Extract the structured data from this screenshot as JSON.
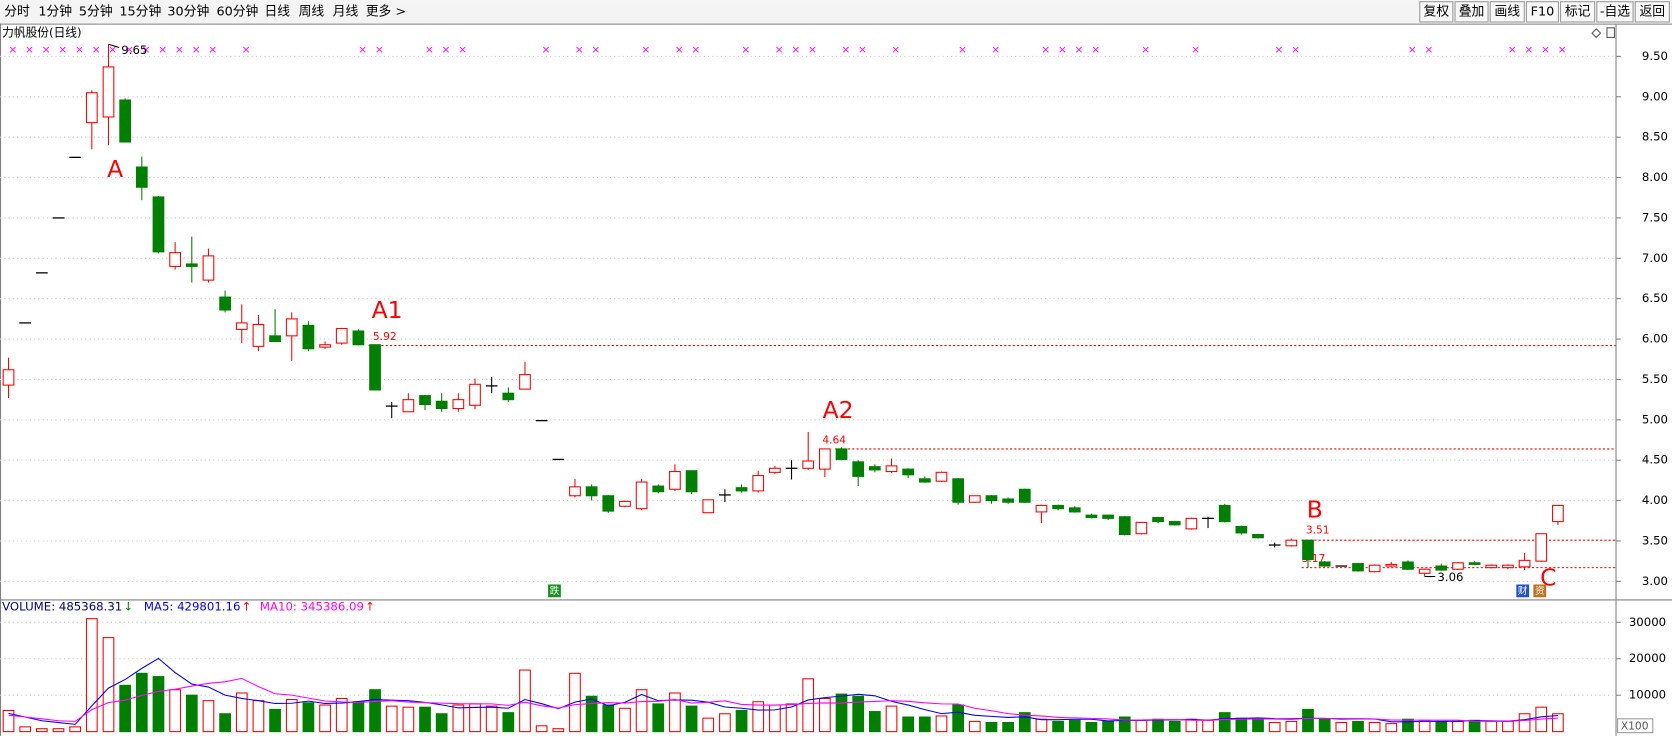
{
  "toolbar": {
    "periods": [
      "分时",
      "1分钟",
      "5分钟",
      "15分钟",
      "30分钟",
      "60分钟",
      "日线",
      "周线",
      "月线",
      "更多 >"
    ],
    "active_period": 6,
    "active_color": "#ff0000",
    "buttons": [
      "复权",
      "叠加",
      "画线",
      "F10",
      "标记",
      "-自选",
      "返回"
    ]
  },
  "chart_data": [
    {
      "type": "candlestick",
      "title": "力帆股份(日线)",
      "open": [
        5.43,
        6.2,
        6.82,
        7.5,
        8.25,
        8.68,
        8.75,
        8.96,
        8.13,
        7.76,
        6.9,
        6.93,
        6.73,
        6.52,
        6.12,
        5.91,
        6.04,
        6.04,
        6.17,
        5.9,
        5.95,
        6.1,
        5.93,
        5.17,
        5.1,
        5.3,
        5.23,
        5.14,
        5.18,
        5.42,
        5.33,
        5.38,
        4.99,
        4.51,
        4.06,
        4.17,
        4.06,
        3.93,
        3.9,
        4.18,
        4.14,
        4.37,
        3.85,
        4.07,
        4.16,
        4.12,
        4.35,
        4.4,
        4.4,
        4.39,
        4.64,
        4.48,
        4.42,
        4.36,
        4.39,
        4.27,
        4.24,
        4.27,
        3.98,
        4.06,
        4.02,
        4.14,
        3.86,
        3.94,
        3.91,
        3.82,
        3.82,
        3.8,
        3.59,
        3.79,
        3.74,
        3.65,
        3.78,
        3.94,
        3.68,
        3.58,
        3.45,
        3.44,
        3.51,
        3.24,
        3.19,
        3.22,
        3.12,
        3.19,
        3.24,
        3.1,
        3.19,
        3.15,
        3.23,
        3.17,
        3.17,
        3.18,
        3.25,
        3.74
      ],
      "high": [
        5.77,
        6.2,
        6.82,
        7.5,
        8.25,
        9.08,
        9.65,
        8.98,
        8.26,
        7.77,
        7.2,
        7.27,
        7.12,
        6.6,
        6.43,
        6.3,
        6.37,
        6.33,
        6.22,
        5.97,
        6.14,
        6.12,
        5.93,
        5.22,
        5.33,
        5.31,
        5.33,
        5.33,
        5.51,
        5.53,
        5.4,
        5.72,
        4.99,
        4.51,
        4.27,
        4.2,
        4.07,
        4.0,
        4.27,
        4.2,
        4.45,
        4.37,
        4.01,
        4.14,
        4.2,
        4.37,
        4.43,
        4.5,
        4.85,
        4.64,
        4.66,
        4.5,
        4.45,
        4.52,
        4.4,
        4.3,
        4.36,
        4.28,
        4.06,
        4.07,
        4.04,
        4.15,
        3.95,
        3.95,
        3.93,
        3.84,
        3.82,
        3.81,
        3.73,
        3.8,
        3.75,
        3.79,
        3.8,
        3.96,
        3.69,
        3.59,
        3.48,
        3.53,
        3.51,
        3.25,
        3.19,
        3.23,
        3.21,
        3.24,
        3.26,
        3.16,
        3.22,
        3.24,
        3.25,
        3.21,
        3.21,
        3.35,
        3.59,
        3.94
      ],
      "low": [
        5.27,
        6.2,
        6.82,
        7.5,
        8.25,
        8.35,
        8.4,
        8.44,
        7.72,
        7.06,
        6.86,
        6.7,
        6.7,
        6.33,
        5.95,
        5.85,
        5.97,
        5.73,
        5.85,
        5.88,
        5.93,
        5.92,
        5.37,
        5.02,
        5.1,
        5.12,
        5.1,
        5.1,
        5.13,
        5.33,
        5.22,
        5.38,
        4.99,
        4.51,
        4.04,
        4.0,
        3.85,
        3.92,
        3.88,
        4.09,
        4.12,
        4.08,
        3.85,
        3.98,
        4.1,
        4.1,
        4.33,
        4.26,
        4.38,
        4.29,
        4.5,
        4.18,
        4.35,
        4.34,
        4.28,
        4.22,
        4.23,
        3.95,
        3.97,
        3.96,
        3.96,
        3.97,
        3.72,
        3.88,
        3.85,
        3.78,
        3.76,
        3.57,
        3.58,
        3.72,
        3.69,
        3.64,
        3.66,
        3.73,
        3.58,
        3.53,
        3.42,
        3.43,
        3.17,
        3.18,
        3.19,
        3.12,
        3.11,
        3.18,
        3.14,
        3.06,
        3.13,
        3.14,
        3.2,
        3.16,
        3.15,
        3.14,
        3.24,
        3.7
      ],
      "close": [
        5.62,
        6.2,
        6.82,
        7.5,
        8.25,
        9.05,
        9.37,
        8.44,
        7.88,
        7.08,
        7.07,
        6.9,
        7.03,
        6.36,
        6.2,
        6.18,
        5.97,
        6.25,
        5.88,
        5.93,
        6.13,
        5.93,
        5.37,
        5.17,
        5.25,
        5.19,
        5.14,
        5.25,
        5.44,
        5.42,
        5.25,
        5.56,
        4.99,
        4.51,
        4.17,
        4.06,
        3.87,
        3.99,
        4.23,
        4.11,
        4.36,
        4.11,
        4.01,
        4.07,
        4.12,
        4.31,
        4.4,
        4.4,
        4.49,
        4.64,
        4.51,
        4.3,
        4.38,
        4.43,
        4.32,
        4.23,
        4.35,
        3.98,
        4.06,
        4.0,
        3.98,
        3.98,
        3.94,
        3.9,
        3.86,
        3.79,
        3.78,
        3.58,
        3.73,
        3.74,
        3.7,
        3.78,
        3.78,
        3.74,
        3.6,
        3.54,
        3.45,
        3.51,
        3.27,
        3.19,
        3.19,
        3.13,
        3.2,
        3.21,
        3.15,
        3.15,
        3.14,
        3.23,
        3.21,
        3.2,
        3.2,
        3.26,
        3.59,
        3.94
      ],
      "up_color": "#ff0000",
      "down_color": "#008000",
      "flat_color": "#000000",
      "ylim": [
        2.79,
        9.88
      ],
      "yticks": [
        {
          "value": 3,
          "label": "3.00"
        },
        {
          "value": 3.5,
          "label": "3.50"
        },
        {
          "value": 4,
          "label": "4.00"
        },
        {
          "value": 4.5,
          "label": "4.50"
        },
        {
          "value": 5,
          "label": "5.00"
        },
        {
          "value": 5.5,
          "label": "5.50"
        },
        {
          "value": 6,
          "label": "6.00"
        },
        {
          "value": 6.5,
          "label": "6.50"
        },
        {
          "value": 7,
          "label": "7.00"
        },
        {
          "value": 7.5,
          "label": "7.50"
        },
        {
          "value": 8,
          "label": "8.00"
        },
        {
          "value": 8.5,
          "label": "8.50"
        },
        {
          "value": 9,
          "label": "9.00"
        },
        {
          "value": 9.5,
          "label": "9.50"
        }
      ],
      "grid": true,
      "levels": [
        5.92,
        4.64,
        3.51,
        3.17
      ],
      "level_color": "#ff0000",
      "extreme_labels": [
        9.65,
        3.06
      ],
      "annotations": [
        "A",
        "A1",
        "A2",
        "B",
        "C"
      ],
      "annotation_color": "#ff0000",
      "info_markers": [
        0,
        1,
        2,
        3,
        4,
        5,
        6,
        7,
        8,
        9,
        10,
        11,
        12,
        14,
        21,
        22,
        25,
        26,
        27,
        32,
        34,
        35,
        38,
        40,
        41,
        44,
        46,
        47,
        48,
        50,
        51,
        53,
        57,
        59,
        62,
        63,
        64,
        65,
        68,
        71,
        76,
        77,
        84,
        85,
        90,
        91,
        92,
        93
      ],
      "marker_symbol": "×",
      "marker_color": "#ff00ff",
      "icons": [
        "跌",
        "财",
        "资"
      ]
    },
    {
      "type": "bar",
      "volume_label": "VOLUME: 485368.31",
      "volume_color": "#000080",
      "volume_arrow": "↓",
      "volume_arrow_color": "#008000",
      "values": [
        5800,
        1300,
        800,
        800,
        1300,
        31000,
        25800,
        12700,
        16000,
        15100,
        11500,
        10000,
        8500,
        4900,
        10600,
        8500,
        6100,
        8800,
        7900,
        7300,
        9100,
        8200,
        11500,
        7000,
        6700,
        6700,
        4900,
        7300,
        7600,
        7000,
        5200,
        16900,
        1600,
        800,
        16000,
        9700,
        7300,
        6400,
        11500,
        7600,
        10600,
        7000,
        3700,
        4900,
        5800,
        8200,
        7300,
        7600,
        14500,
        9100,
        10300,
        9700,
        5500,
        7000,
        4000,
        4000,
        4300,
        7300,
        2800,
        2500,
        2500,
        5200,
        3400,
        2800,
        3100,
        2500,
        2800,
        4000,
        3100,
        3400,
        2800,
        3400,
        3100,
        5200,
        3700,
        3400,
        2500,
        2800,
        6100,
        3400,
        2500,
        2800,
        2500,
        2200,
        3400,
        3100,
        2800,
        2800,
        3100,
        2800,
        2800,
        4900,
        6700,
        4900
      ],
      "series": [
        {
          "name": "MA5: 429801.16",
          "color": "#0000ff",
          "arrow": "↑",
          "arrow_color": "#ff0000",
          "values": [
            5000,
            4000,
            3000,
            2500,
            2000,
            7040,
            11940,
            14320,
            17360,
            20120,
            16220,
            13060,
            12220,
            10000,
            9100,
            8500,
            7720,
            7780,
            8380,
            7720,
            7840,
            8260,
            8800,
            8620,
            8500,
            8020,
            7360,
            6520,
            6640,
            6700,
            6400,
            8800,
            7660,
            6300,
            8100,
            9000,
            7080,
            8040,
            10180,
            8500,
            8680,
            8620,
            8080,
            6760,
            6400,
            5920,
            5980,
            6760,
            8680,
            9340,
            9760,
            10240,
            9820,
            8320,
            7300,
            6040,
            4960,
            5320,
            4480,
            4180,
            3880,
            4060,
            3280,
            3280,
            3400,
            3400,
            2920,
            3040,
            3100,
            3160,
            3220,
            3340,
            3160,
            3580,
            3640,
            3760,
            3580,
            3520,
            3700,
            3640,
            3460,
            3520,
            3460,
            2680,
            2680,
            2800,
            2800,
            2860,
            3040,
            2920,
            2860,
            3280,
            4060,
            4420
          ]
        },
        {
          "name": "MA10: 345386.09",
          "color": "#ff00ff",
          "arrow": "↑",
          "arrow_color": "#ff0000",
          "values": [
            4500,
            4000,
            3500,
            3000,
            2800,
            6020,
            7970,
            8660,
            9930,
            11060,
            11630,
            12500,
            13270,
            13680,
            14610,
            12360,
            10390,
            10000,
            9190,
            8410,
            8170,
            7990,
            8290,
            8500,
            8110,
            7930,
            7810,
            7660,
            7630,
            7600,
            7210,
            8080,
            7090,
            6470,
            7400,
            7700,
            7940,
            7850,
            8240,
            8300,
            8840,
            7850,
            8060,
            8470,
            7450,
            7300,
            7300,
            7420,
            7720,
            7870,
            7840,
            8110,
            8290,
            8500,
            8320,
            7900,
            7600,
            7570,
            6400,
            5740,
            4960,
            4510,
            4300,
            3880,
            3790,
            3640,
            3490,
            3160,
            3190,
            3280,
            3310,
            3130,
            3100,
            3340,
            3400,
            3490,
            3460,
            3340,
            3640,
            3640,
            3610,
            3550,
            3490,
            3190,
            3160,
            3130,
            3160,
            3160,
            2860,
            2800,
            2830,
            3040,
            3460,
            3730
          ]
        }
      ],
      "ylim": [
        0,
        36000
      ],
      "yticks": [
        10000,
        20000,
        30000
      ],
      "unit_label": "X100"
    }
  ]
}
